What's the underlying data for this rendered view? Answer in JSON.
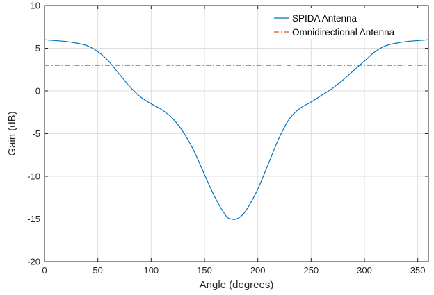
{
  "chart_data": {
    "type": "line",
    "xlabel": "Angle (degrees)",
    "ylabel": "Gain (dB)",
    "xlim": [
      0,
      360
    ],
    "ylim": [
      -20,
      10
    ],
    "xticks": [
      0,
      50,
      100,
      150,
      200,
      250,
      300,
      350
    ],
    "yticks": [
      -20,
      -15,
      -10,
      -5,
      0,
      5,
      10
    ],
    "xtick_labels": [
      "0",
      "50",
      "100",
      "150",
      "200",
      "250",
      "300",
      "350"
    ],
    "ytick_labels": [
      "-20",
      "-15",
      "-10",
      "-5",
      "0",
      "5",
      "10"
    ],
    "grid": true,
    "legend_position": "top-right",
    "series": [
      {
        "name": "SPIDA Antenna",
        "color": "#0072BD",
        "style": "solid",
        "x": [
          0,
          10,
          20,
          30,
          40,
          50,
          60,
          70,
          80,
          90,
          100,
          110,
          120,
          130,
          140,
          150,
          160,
          170,
          175,
          180,
          185,
          190,
          200,
          210,
          220,
          230,
          240,
          250,
          260,
          270,
          280,
          290,
          300,
          310,
          320,
          330,
          340,
          350,
          360
        ],
        "y": [
          6.0,
          5.9,
          5.8,
          5.6,
          5.3,
          4.6,
          3.5,
          2.0,
          0.5,
          -0.7,
          -1.5,
          -2.2,
          -3.2,
          -4.8,
          -7.0,
          -9.8,
          -12.5,
          -14.6,
          -15.0,
          -15.0,
          -14.6,
          -13.8,
          -11.5,
          -8.5,
          -5.5,
          -3.2,
          -2.0,
          -1.3,
          -0.5,
          0.3,
          1.3,
          2.4,
          3.5,
          4.6,
          5.3,
          5.6,
          5.8,
          5.9,
          6.0
        ]
      },
      {
        "name": "Omnidirectional Antenna",
        "color": "#D95319",
        "style": "dash-dot",
        "x": [
          0,
          360
        ],
        "y": [
          3,
          3
        ]
      }
    ]
  }
}
